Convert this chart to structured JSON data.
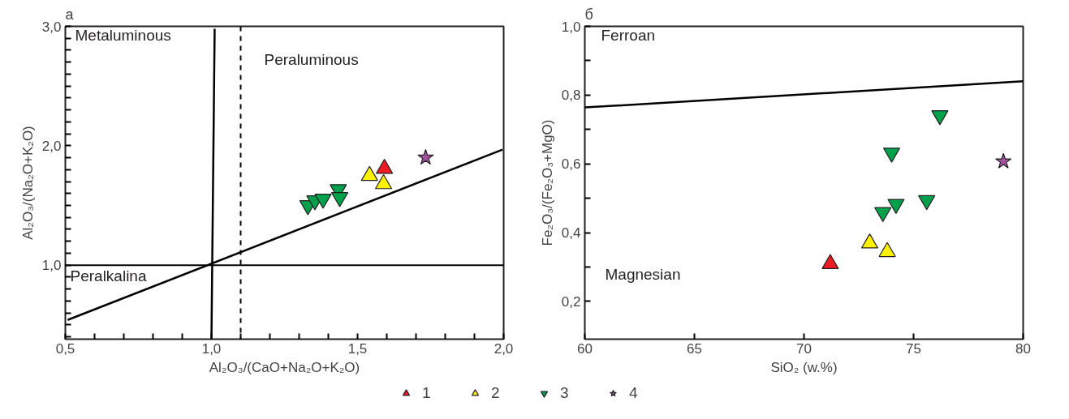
{
  "chart_data": [
    {
      "type": "scatter",
      "title": "а",
      "xlabel": "Al₂O₃/(CaO+Na₂O+K₂O)",
      "ylabel": "Al₂O₃/(Na₂O+K₂O)",
      "xlim": [
        0.5,
        2.0
      ],
      "ylim": [
        0.38,
        3.0
      ],
      "xticks": [
        {
          "value": 0.5,
          "label": "0,5"
        },
        {
          "value": 0.6,
          "label": null
        },
        {
          "value": 0.7,
          "label": null
        },
        {
          "value": 0.8,
          "label": null
        },
        {
          "value": 0.9,
          "label": null
        },
        {
          "value": 1.0,
          "label": "1,0"
        },
        {
          "value": 1.1,
          "label": null
        },
        {
          "value": 1.2,
          "label": null
        },
        {
          "value": 1.3,
          "label": null
        },
        {
          "value": 1.4,
          "label": null
        },
        {
          "value": 1.5,
          "label": "1,5"
        },
        {
          "value": 1.6,
          "label": null
        },
        {
          "value": 1.7,
          "label": null
        },
        {
          "value": 1.8,
          "label": null
        },
        {
          "value": 1.9,
          "label": null
        },
        {
          "value": 2.0,
          "label": "2,0"
        }
      ],
      "yticks": [
        {
          "value": 0.4,
          "label": null
        },
        {
          "value": 0.5,
          "label": null
        },
        {
          "value": 0.6,
          "label": null
        },
        {
          "value": 0.7,
          "label": null
        },
        {
          "value": 0.8,
          "label": null
        },
        {
          "value": 0.9,
          "label": null
        },
        {
          "value": 1.0,
          "label": "1,0"
        },
        {
          "value": 1.1,
          "label": null
        },
        {
          "value": 1.2,
          "label": null
        },
        {
          "value": 1.3,
          "label": null
        },
        {
          "value": 1.4,
          "label": null
        },
        {
          "value": 1.5,
          "label": null
        },
        {
          "value": 1.6,
          "label": null
        },
        {
          "value": 1.7,
          "label": null
        },
        {
          "value": 1.8,
          "label": null
        },
        {
          "value": 1.9,
          "label": null
        },
        {
          "value": 2.0,
          "label": "2,0"
        },
        {
          "value": 2.1,
          "label": null
        },
        {
          "value": 2.2,
          "label": null
        },
        {
          "value": 2.3,
          "label": null
        },
        {
          "value": 2.4,
          "label": null
        },
        {
          "value": 2.5,
          "label": null
        },
        {
          "value": 2.6,
          "label": null
        },
        {
          "value": 2.7,
          "label": null
        },
        {
          "value": 2.8,
          "label": null
        },
        {
          "value": 2.9,
          "label": null
        },
        {
          "value": 3.0,
          "label": "3,0"
        }
      ],
      "grid": false,
      "legend": "bottom",
      "series": [
        {
          "type": "line",
          "color": "#000000",
          "x": [
            0.508,
            1.996
          ],
          "values": [
            0.541,
            1.968
          ]
        },
        {
          "type": "line",
          "color": "#000000",
          "x": [
            1.0,
            1.011
          ],
          "values": [
            0.38,
            2.98
          ]
        },
        {
          "name": "1",
          "color": "#ed1c24",
          "marker": "triangle",
          "x": [
            1.592
          ],
          "values": [
            1.808
          ]
        },
        {
          "name": "2",
          "color": "#fff200",
          "marker": "triangle",
          "x": [
            1.541,
            1.589
          ],
          "values": [
            1.749,
            1.68
          ]
        },
        {
          "name": "3",
          "color": "#00a14b",
          "marker": "triangle_down",
          "x": [
            1.33,
            1.354,
            1.382,
            1.434,
            1.439
          ],
          "values": [
            1.501,
            1.541,
            1.555,
            1.635,
            1.568
          ]
        },
        {
          "name": "4",
          "color": "#a0519b",
          "marker": "star",
          "x": [
            1.733
          ],
          "values": [
            1.901
          ]
        }
      ],
      "ref_lines": [
        {
          "axis": "y",
          "value": 1.0,
          "color": "#000000",
          "line_style": "solid"
        },
        {
          "axis": "x",
          "value": 1.1,
          "color": "#000000",
          "line_style": "dashed"
        }
      ],
      "annotations": [
        "Metaluminous",
        "Peraluminous",
        "Peralkalina"
      ]
    },
    {
      "type": "scatter",
      "title": "б",
      "xlabel": "SiO₂ (w.%)",
      "ylabel": "Fe₂O₃/(Fe₂O₃+MgO)",
      "xlim": [
        60,
        80
      ],
      "ylim": [
        0.09,
        1.0
      ],
      "xticks": [
        60,
        65,
        70,
        75,
        80
      ],
      "yticks": [
        {
          "value": 0.2,
          "label": "0,2"
        },
        {
          "value": 0.3,
          "label": null
        },
        {
          "value": 0.4,
          "label": "0,4"
        },
        {
          "value": 0.5,
          "label": null
        },
        {
          "value": 0.6,
          "label": "0,6"
        },
        {
          "value": 0.7,
          "label": null
        },
        {
          "value": 0.8,
          "label": "0,8"
        },
        {
          "value": 0.9,
          "label": null
        },
        {
          "value": 1.0,
          "label": "1,0"
        }
      ],
      "grid": false,
      "series": [
        {
          "type": "line",
          "color": "#000000",
          "x": [
            60,
            80
          ],
          "values": [
            0.764,
            0.84
          ]
        },
        {
          "name": "1",
          "color": "#ed1c24",
          "marker": "triangle",
          "x": [
            71.2
          ],
          "values": [
            0.309
          ]
        },
        {
          "name": "2",
          "color": "#fff200",
          "marker": "triangle",
          "x": [
            73.0,
            73.8
          ],
          "values": [
            0.369,
            0.344
          ]
        },
        {
          "name": "3",
          "color": "#00a14b",
          "marker": "triangle_down",
          "x": [
            76.2,
            74.0,
            74.2,
            75.6,
            73.6
          ],
          "values": [
            0.741,
            0.632,
            0.483,
            0.494,
            0.459
          ]
        },
        {
          "name": "4",
          "color": "#a0519b",
          "marker": "star",
          "x": [
            79.1
          ],
          "values": [
            0.607
          ]
        }
      ],
      "annotations": [
        "Ferroan",
        "Magnesian"
      ]
    }
  ]
}
